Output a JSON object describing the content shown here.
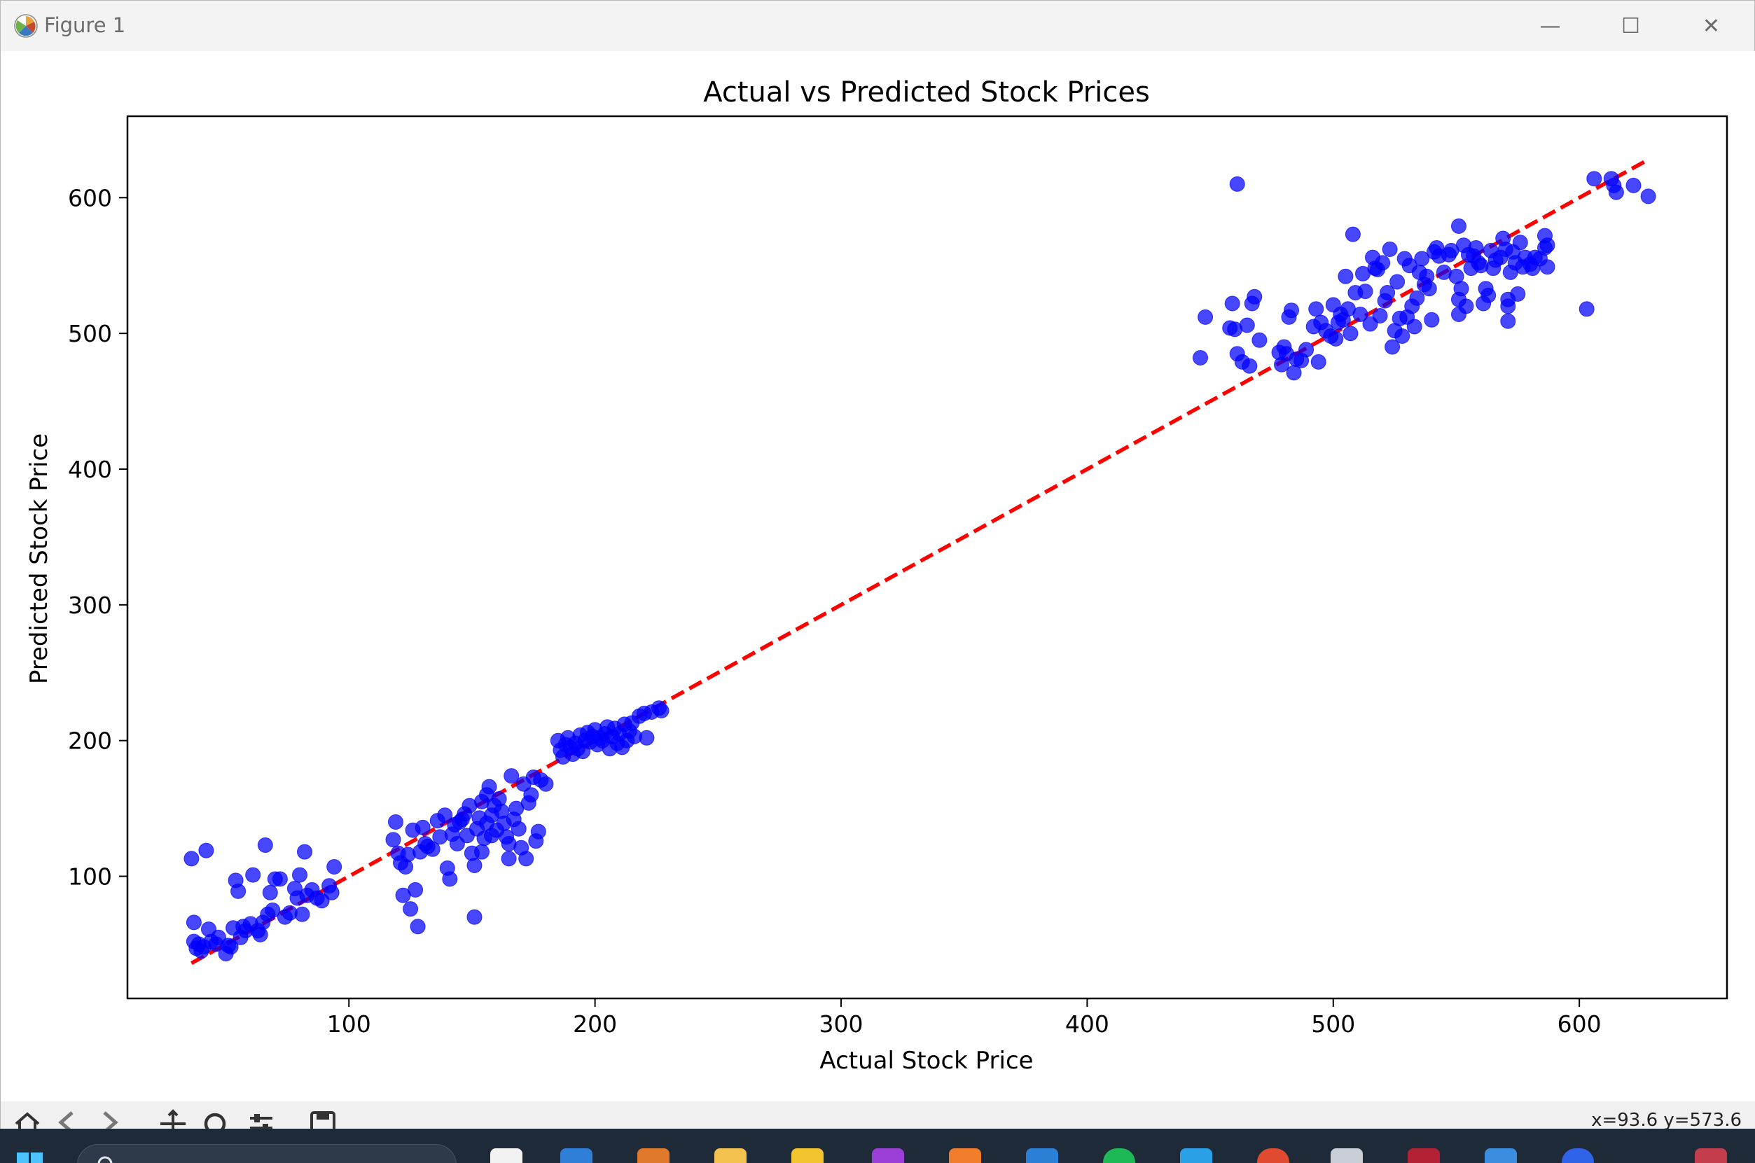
{
  "window": {
    "title": "Figure 1",
    "minimize_glyph": "—",
    "maximize_glyph": "☐",
    "close_glyph": "✕"
  },
  "statusbar": {
    "coords": "x=93.6 y=573.6"
  },
  "toolbar": {
    "icons": [
      "home-icon",
      "back-icon",
      "forward-icon",
      "pan-icon",
      "zoom-icon",
      "configure-subplots-icon",
      "save-icon"
    ]
  },
  "chart_data": {
    "type": "scatter",
    "title": "Actual vs Predicted Stock Prices",
    "xlabel": "Actual Stock Price",
    "ylabel": "Predicted Stock Price",
    "xlim": [
      10,
      660
    ],
    "ylim": [
      10,
      660
    ],
    "xticks": [
      100,
      200,
      300,
      400,
      500,
      600
    ],
    "yticks": [
      100,
      200,
      300,
      400,
      500,
      600
    ],
    "grid": false,
    "point_color": "#0000ff",
    "line_color": "#ff0000",
    "reference_line": {
      "x": [
        36,
        628
      ],
      "y": [
        36,
        628
      ],
      "style": "dashed"
    },
    "points": [
      [
        36,
        113
      ],
      [
        37,
        66
      ],
      [
        37,
        52
      ],
      [
        38,
        47
      ],
      [
        39,
        50
      ],
      [
        40,
        45
      ],
      [
        41,
        48
      ],
      [
        42,
        119
      ],
      [
        43,
        61
      ],
      [
        44,
        52
      ],
      [
        46,
        50
      ],
      [
        47,
        55
      ],
      [
        50,
        43
      ],
      [
        51,
        49
      ],
      [
        52,
        48
      ],
      [
        53,
        62
      ],
      [
        54,
        97
      ],
      [
        55,
        89
      ],
      [
        56,
        55
      ],
      [
        57,
        63
      ],
      [
        58,
        60
      ],
      [
        60,
        65
      ],
      [
        61,
        101
      ],
      [
        63,
        60
      ],
      [
        64,
        57
      ],
      [
        65,
        66
      ],
      [
        66,
        123
      ],
      [
        67,
        72
      ],
      [
        68,
        88
      ],
      [
        69,
        75
      ],
      [
        70,
        98
      ],
      [
        72,
        98
      ],
      [
        74,
        70
      ],
      [
        76,
        73
      ],
      [
        78,
        91
      ],
      [
        79,
        84
      ],
      [
        80,
        101
      ],
      [
        81,
        72
      ],
      [
        82,
        118
      ],
      [
        83,
        86
      ],
      [
        85,
        90
      ],
      [
        87,
        84
      ],
      [
        89,
        82
      ],
      [
        92,
        93
      ],
      [
        93,
        88
      ],
      [
        94,
        107
      ],
      [
        118,
        127
      ],
      [
        119,
        140
      ],
      [
        120,
        117
      ],
      [
        121,
        110
      ],
      [
        122,
        86
      ],
      [
        123,
        107
      ],
      [
        124,
        116
      ],
      [
        125,
        76
      ],
      [
        126,
        134
      ],
      [
        127,
        90
      ],
      [
        128,
        63
      ],
      [
        129,
        118
      ],
      [
        130,
        136
      ],
      [
        131,
        124
      ],
      [
        132,
        122
      ],
      [
        134,
        120
      ],
      [
        136,
        141
      ],
      [
        137,
        129
      ],
      [
        139,
        145
      ],
      [
        140,
        106
      ],
      [
        141,
        98
      ],
      [
        142,
        131
      ],
      [
        143,
        138
      ],
      [
        144,
        124
      ],
      [
        145,
        140
      ],
      [
        146,
        142
      ],
      [
        147,
        146
      ],
      [
        148,
        130
      ],
      [
        149,
        152
      ],
      [
        150,
        117
      ],
      [
        151,
        70
      ],
      [
        151,
        108
      ],
      [
        152,
        135
      ],
      [
        153,
        143
      ],
      [
        154,
        155
      ],
      [
        154,
        118
      ],
      [
        155,
        128
      ],
      [
        156,
        160
      ],
      [
        156,
        139
      ],
      [
        157,
        166
      ],
      [
        158,
        145
      ],
      [
        158,
        130
      ],
      [
        159,
        152
      ],
      [
        160,
        134
      ],
      [
        161,
        157
      ],
      [
        162,
        148
      ],
      [
        163,
        139
      ],
      [
        164,
        129
      ],
      [
        165,
        113
      ],
      [
        165,
        124
      ],
      [
        166,
        174
      ],
      [
        167,
        142
      ],
      [
        168,
        150
      ],
      [
        169,
        135
      ],
      [
        170,
        121
      ],
      [
        171,
        168
      ],
      [
        172,
        113
      ],
      [
        173,
        154
      ],
      [
        174,
        160
      ],
      [
        175,
        173
      ],
      [
        176,
        126
      ],
      [
        177,
        133
      ],
      [
        178,
        171
      ],
      [
        180,
        168
      ],
      [
        185,
        200
      ],
      [
        186,
        193
      ],
      [
        187,
        188
      ],
      [
        188,
        197
      ],
      [
        189,
        202
      ],
      [
        190,
        195
      ],
      [
        191,
        190
      ],
      [
        192,
        198
      ],
      [
        193,
        194
      ],
      [
        194,
        204
      ],
      [
        195,
        192
      ],
      [
        196,
        200
      ],
      [
        197,
        206
      ],
      [
        198,
        199
      ],
      [
        199,
        203
      ],
      [
        200,
        208
      ],
      [
        201,
        197
      ],
      [
        202,
        202
      ],
      [
        203,
        200
      ],
      [
        204,
        205
      ],
      [
        205,
        210
      ],
      [
        206,
        194
      ],
      [
        207,
        203
      ],
      [
        208,
        209
      ],
      [
        209,
        198
      ],
      [
        210,
        205
      ],
      [
        211,
        195
      ],
      [
        212,
        212
      ],
      [
        213,
        200
      ],
      [
        214,
        207
      ],
      [
        215,
        213
      ],
      [
        216,
        203
      ],
      [
        218,
        218
      ],
      [
        220,
        220
      ],
      [
        221,
        202
      ],
      [
        223,
        221
      ],
      [
        226,
        224
      ],
      [
        227,
        222
      ],
      [
        446,
        482
      ],
      [
        448,
        512
      ],
      [
        458,
        504
      ],
      [
        459,
        522
      ],
      [
        460,
        503
      ],
      [
        461,
        610
      ],
      [
        461,
        485
      ],
      [
        463,
        479
      ],
      [
        465,
        506
      ],
      [
        466,
        476
      ],
      [
        467,
        522
      ],
      [
        468,
        527
      ],
      [
        470,
        495
      ],
      [
        478,
        486
      ],
      [
        479,
        477
      ],
      [
        480,
        490
      ],
      [
        481,
        485
      ],
      [
        482,
        512
      ],
      [
        483,
        517
      ],
      [
        484,
        471
      ],
      [
        485,
        481
      ],
      [
        487,
        480
      ],
      [
        489,
        488
      ],
      [
        492,
        505
      ],
      [
        493,
        518
      ],
      [
        494,
        479
      ],
      [
        495,
        508
      ],
      [
        497,
        502
      ],
      [
        499,
        498
      ],
      [
        500,
        521
      ],
      [
        501,
        496
      ],
      [
        502,
        508
      ],
      [
        503,
        514
      ],
      [
        504,
        510
      ],
      [
        505,
        542
      ],
      [
        506,
        518
      ],
      [
        507,
        500
      ],
      [
        508,
        573
      ],
      [
        509,
        530
      ],
      [
        511,
        514
      ],
      [
        512,
        544
      ],
      [
        513,
        531
      ],
      [
        515,
        507
      ],
      [
        516,
        556
      ],
      [
        517,
        548
      ],
      [
        518,
        547
      ],
      [
        519,
        513
      ],
      [
        520,
        552
      ],
      [
        521,
        524
      ],
      [
        522,
        530
      ],
      [
        523,
        562
      ],
      [
        524,
        490
      ],
      [
        525,
        502
      ],
      [
        526,
        538
      ],
      [
        527,
        511
      ],
      [
        528,
        498
      ],
      [
        529,
        555
      ],
      [
        530,
        512
      ],
      [
        531,
        550
      ],
      [
        532,
        520
      ],
      [
        533,
        505
      ],
      [
        534,
        526
      ],
      [
        535,
        545
      ],
      [
        536,
        555
      ],
      [
        537,
        536
      ],
      [
        538,
        542
      ],
      [
        539,
        533
      ],
      [
        540,
        510
      ],
      [
        541,
        560
      ],
      [
        542,
        563
      ],
      [
        543,
        557
      ],
      [
        545,
        545
      ],
      [
        547,
        558
      ],
      [
        548,
        561
      ],
      [
        550,
        542
      ],
      [
        551,
        579
      ],
      [
        551,
        525
      ],
      [
        551,
        514
      ],
      [
        552,
        533
      ],
      [
        553,
        565
      ],
      [
        554,
        520
      ],
      [
        555,
        558
      ],
      [
        556,
        548
      ],
      [
        557,
        557
      ],
      [
        558,
        563
      ],
      [
        559,
        552
      ],
      [
        560,
        550
      ],
      [
        561,
        522
      ],
      [
        562,
        533
      ],
      [
        563,
        528
      ],
      [
        564,
        561
      ],
      [
        565,
        548
      ],
      [
        566,
        554
      ],
      [
        568,
        556
      ],
      [
        569,
        570
      ],
      [
        570,
        562
      ],
      [
        571,
        509
      ],
      [
        571,
        520
      ],
      [
        571,
        525
      ],
      [
        572,
        545
      ],
      [
        573,
        560
      ],
      [
        574,
        552
      ],
      [
        575,
        529
      ],
      [
        576,
        567
      ],
      [
        577,
        549
      ],
      [
        578,
        556
      ],
      [
        580,
        551
      ],
      [
        581,
        548
      ],
      [
        582,
        556
      ],
      [
        584,
        555
      ],
      [
        586,
        572
      ],
      [
        586,
        563
      ],
      [
        587,
        565
      ],
      [
        587,
        549
      ],
      [
        603,
        518
      ],
      [
        606,
        614
      ],
      [
        613,
        614
      ],
      [
        614,
        609
      ],
      [
        615,
        604
      ],
      [
        622,
        609
      ],
      [
        628,
        601
      ]
    ]
  }
}
